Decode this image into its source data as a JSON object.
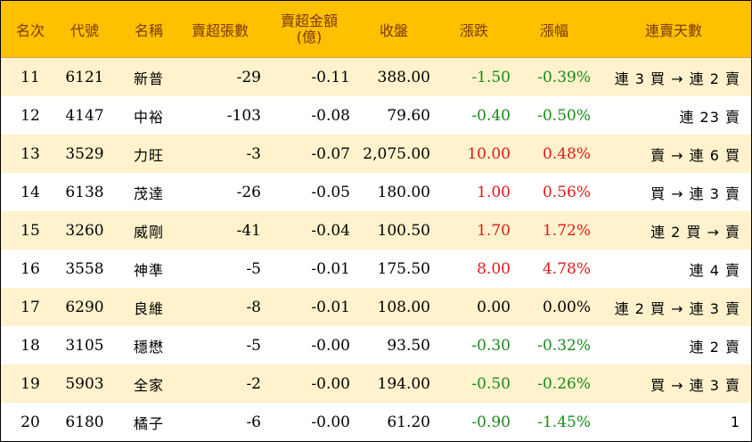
{
  "headers": [
    "名次",
    "代號",
    "名稱",
    "賣超張數",
    "賣超金額",
    "(億)",
    "收盤",
    "漲跌",
    "漲幅",
    "連賣天數"
  ],
  "rows": [
    {
      "rank": "11",
      "code": "6121",
      "name": "新普",
      "shares": "-29",
      "amount": "-0.11",
      "close": "388.00",
      "change": "-1.50",
      "pct": "-0.39%",
      "streak": "連 3 買 → 連 2 賣",
      "dir": "neg"
    },
    {
      "rank": "12",
      "code": "4147",
      "name": "中裕",
      "shares": "-103",
      "amount": "-0.08",
      "close": "79.60",
      "change": "-0.40",
      "pct": "-0.50%",
      "streak": "連 23 賣",
      "dir": "neg"
    },
    {
      "rank": "13",
      "code": "3529",
      "name": "力旺",
      "shares": "-3",
      "amount": "-0.07",
      "close": "2,075.00",
      "change": "10.00",
      "pct": "0.48%",
      "streak": "賣 → 連 6 買",
      "dir": "pos"
    },
    {
      "rank": "14",
      "code": "6138",
      "name": "茂達",
      "shares": "-26",
      "amount": "-0.05",
      "close": "180.00",
      "change": "1.00",
      "pct": "0.56%",
      "streak": "買 → 連 3 賣",
      "dir": "pos"
    },
    {
      "rank": "15",
      "code": "3260",
      "name": "威剛",
      "shares": "-41",
      "amount": "-0.04",
      "close": "100.50",
      "change": "1.70",
      "pct": "1.72%",
      "streak": "連 2 買 → 賣",
      "dir": "pos"
    },
    {
      "rank": "16",
      "code": "3558",
      "name": "神準",
      "shares": "-5",
      "amount": "-0.01",
      "close": "175.50",
      "change": "8.00",
      "pct": "4.78%",
      "streak": "連 4 賣",
      "dir": "pos"
    },
    {
      "rank": "17",
      "code": "6290",
      "name": "良維",
      "shares": "-8",
      "amount": "-0.01",
      "close": "108.00",
      "change": "0.00",
      "pct": "0.00%",
      "streak": "連 2 買 → 連 3 賣",
      "dir": "zero"
    },
    {
      "rank": "18",
      "code": "3105",
      "name": "穩懋",
      "shares": "-5",
      "amount": "-0.00",
      "close": "93.50",
      "change": "-0.30",
      "pct": "-0.32%",
      "streak": "連 2 賣",
      "dir": "neg"
    },
    {
      "rank": "19",
      "code": "5903",
      "name": "全家",
      "shares": "-2",
      "amount": "-0.00",
      "close": "194.00",
      "change": "-0.50",
      "pct": "-0.26%",
      "streak": "買 → 連 3 賣",
      "dir": "neg"
    },
    {
      "rank": "20",
      "code": "6180",
      "name": "橘子",
      "shares": "-6",
      "amount": "-0.00",
      "close": "61.20",
      "change": "-0.90",
      "pct": "-1.45%",
      "streak": "1",
      "dir": "neg"
    }
  ],
  "colors": {
    "header_bg": "#ffc000",
    "header_text": "#7a3b00",
    "alt_row_bg": "#fff2cc",
    "down": "#1a8a1a",
    "up": "#e01a1a"
  }
}
